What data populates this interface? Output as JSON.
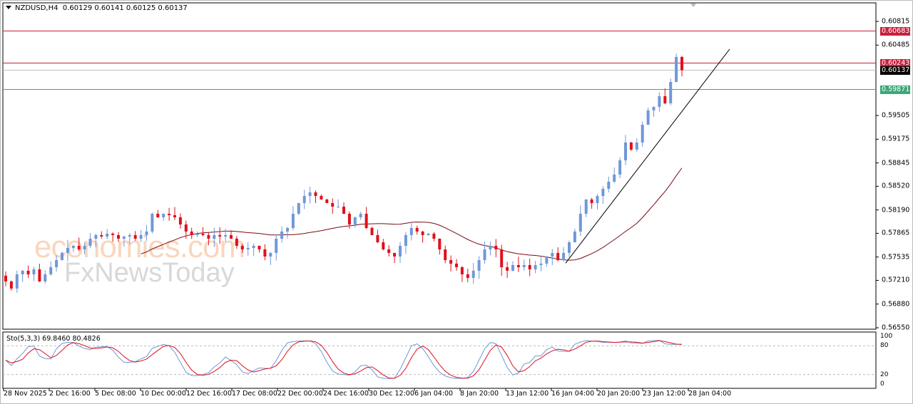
{
  "header": {
    "symbol": "NZDUSD,H4",
    "ohlc": "0.60129 0.60141 0.60125 0.60137"
  },
  "watermark": {
    "line1": "economies.com",
    "line2": "FxNewsToday"
  },
  "colors": {
    "bull": "#6f98d8",
    "bear": "#e0101c",
    "ma": "#7a0a14",
    "resistance": "#c8203c",
    "support": "#3aa878",
    "current": "#000000",
    "trendline": "#000000",
    "sto_main": "#6f98d8",
    "sto_signal": "#e0101c"
  },
  "price_axis": {
    "ticks": [
      "0.60815",
      "0.60485",
      "0.59505",
      "0.59175",
      "0.58845",
      "0.58520",
      "0.58190",
      "0.57865",
      "0.57535",
      "0.57210",
      "0.56880",
      "0.56550"
    ]
  },
  "levels": [
    {
      "label": "0.60683",
      "price": 0.60683,
      "type": "resistance"
    },
    {
      "label": "0.60243",
      "price": 0.60243,
      "type": "resistance"
    },
    {
      "label": "0.60137",
      "price": 0.60137,
      "type": "current"
    },
    {
      "label": "0.59871",
      "price": 0.59871,
      "type": "support"
    }
  ],
  "stochastic": {
    "label": "Sto(5,3,3) 69.8460 80.4826",
    "levels": [
      "100",
      "80",
      "20",
      "0"
    ]
  },
  "time_axis": {
    "ticks": [
      "28 Nov 2025",
      "2 Dec 16:00",
      "5 Dec 08:00",
      "10 Dec 00:00",
      "12 Dec 16:00",
      "17 Dec 08:00",
      "22 Dec 00:00",
      "24 Dec 16:00",
      "30 Dec 12:00",
      "6 Jan 04:00",
      "8 Jan 20:00",
      "13 Jan 12:00",
      "16 Jan 04:00",
      "20 Jan 20:00",
      "23 Jan 12:00",
      "28 Jan 04:00"
    ]
  },
  "chart_data": {
    "type": "candlestick",
    "symbol": "NZDUSD",
    "timeframe": "H4",
    "ylim": [
      0.5655,
      0.6095
    ],
    "closes": [
      0.57195,
      0.57096,
      0.57294,
      0.57344,
      0.57294,
      0.57363,
      0.57195,
      0.57294,
      0.57393,
      0.57492,
      0.57592,
      0.57661,
      0.57691,
      0.57641,
      0.57691,
      0.5779,
      0.5784,
      0.5782,
      0.5786,
      0.5784,
      0.5779,
      0.5782,
      0.5784,
      0.5779,
      0.5784,
      0.5789,
      0.58137,
      0.58088,
      0.58137,
      0.58117,
      0.58088,
      0.57988,
      0.5789,
      0.5784,
      0.5786,
      0.5784,
      0.5779,
      0.5784,
      0.5782,
      0.5784,
      0.5779,
      0.57691,
      0.57641,
      0.57661,
      0.57691,
      0.57641,
      0.57542,
      0.57592,
      0.5779,
      0.5789,
      0.57939,
      0.58137,
      0.58286,
      0.58385,
      0.58435,
      0.58385,
      0.58336,
      0.58286,
      0.58236,
      0.58236,
      0.58137,
      0.57988,
      0.58088,
      0.58137,
      0.57939,
      0.5784,
      0.5774,
      0.57641,
      0.57592,
      0.57542,
      0.57691,
      0.5784,
      0.57939,
      0.5789,
      0.5784,
      0.5786,
      0.5779,
      0.57641,
      0.57492,
      0.57443,
      0.57393,
      0.57294,
      0.57244,
      0.57344,
      0.57492,
      0.57641,
      0.57691,
      0.57641,
      0.57393,
      0.57344,
      0.57423,
      0.57393,
      0.57423,
      0.57363,
      0.57423,
      0.57443,
      0.57542,
      0.57592,
      0.57492,
      0.57592,
      0.5774,
      0.5789,
      0.58137,
      0.58336,
      0.58286,
      0.58385,
      0.58484,
      0.58584,
      0.58683,
      0.58881,
      0.59129,
      0.5903,
      0.59129,
      0.59377,
      0.59576,
      0.59625,
      0.59774,
      0.59675,
      0.59972,
      0.6032,
      0.60137
    ],
    "trendline": {
      "from_price": 0.5745,
      "to_price": 0.6043
    }
  }
}
